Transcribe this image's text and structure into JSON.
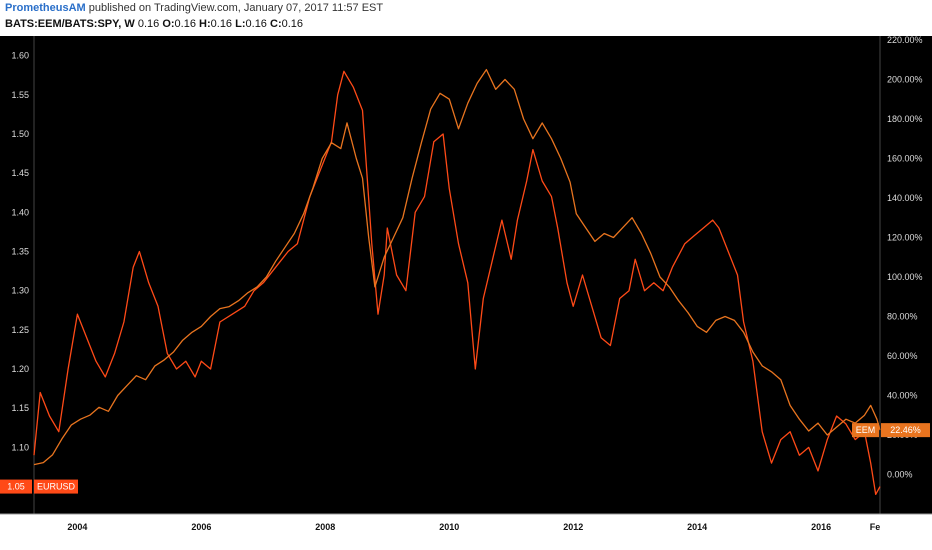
{
  "header": {
    "author": "PrometheusAM",
    "published_text": "published on TradingView.com, January 07, 2017 11:57 EST",
    "symbol": "BATS:EEM/BATS:SPY, W",
    "last_value": "0.16",
    "o_label": "O:",
    "o_value": "0.16",
    "h_label": "H:",
    "h_value": "0.16",
    "l_label": "L:",
    "l_value": "0.16",
    "c_label": "C:",
    "c_value": "0.16"
  },
  "colors": {
    "background": "#000000",
    "eurusd": "#ff4a17",
    "eem": "#e8741f",
    "axis_bg": "#000000",
    "x_axis_bg": "#ffffff"
  },
  "chart_data": {
    "type": "line",
    "title": "",
    "xlabel": "",
    "ylabel": "",
    "x_range": [
      2003.3,
      2016.95
    ],
    "x_ticks": [
      "2004",
      "2006",
      "2008",
      "2010",
      "2012",
      "2014",
      "2016",
      "Fe"
    ],
    "y_left": {
      "range": [
        1.015,
        1.625
      ],
      "ticks": [
        "1.60",
        "1.55",
        "1.50",
        "1.45",
        "1.40",
        "1.35",
        "1.30",
        "1.25",
        "1.20",
        "1.15",
        "1.10"
      ]
    },
    "y_right": {
      "range": [
        -20,
        222
      ],
      "ticks": [
        "220.00%",
        "200.00%",
        "180.00%",
        "160.00%",
        "140.00%",
        "120.00%",
        "100.00%",
        "80.00%",
        "60.00%",
        "40.00%",
        "20.00%",
        "0.00%"
      ]
    },
    "series": [
      {
        "name": "EURUSD",
        "axis": "left",
        "last_value_label": "1.05",
        "points": [
          [
            2003.3,
            1.09
          ],
          [
            2003.4,
            1.17
          ],
          [
            2003.55,
            1.14
          ],
          [
            2003.7,
            1.12
          ],
          [
            2003.85,
            1.2
          ],
          [
            2004.0,
            1.27
          ],
          [
            2004.15,
            1.24
          ],
          [
            2004.3,
            1.21
          ],
          [
            2004.45,
            1.19
          ],
          [
            2004.6,
            1.22
          ],
          [
            2004.75,
            1.26
          ],
          [
            2004.9,
            1.33
          ],
          [
            2005.0,
            1.35
          ],
          [
            2005.15,
            1.31
          ],
          [
            2005.3,
            1.28
          ],
          [
            2005.45,
            1.22
          ],
          [
            2005.6,
            1.2
          ],
          [
            2005.75,
            1.21
          ],
          [
            2005.9,
            1.19
          ],
          [
            2006.0,
            1.21
          ],
          [
            2006.15,
            1.2
          ],
          [
            2006.3,
            1.26
          ],
          [
            2006.5,
            1.27
          ],
          [
            2006.7,
            1.28
          ],
          [
            2006.85,
            1.3
          ],
          [
            2007.0,
            1.31
          ],
          [
            2007.2,
            1.33
          ],
          [
            2007.4,
            1.35
          ],
          [
            2007.55,
            1.36
          ],
          [
            2007.75,
            1.42
          ],
          [
            2007.95,
            1.46
          ],
          [
            2008.1,
            1.49
          ],
          [
            2008.2,
            1.55
          ],
          [
            2008.3,
            1.58
          ],
          [
            2008.45,
            1.56
          ],
          [
            2008.6,
            1.53
          ],
          [
            2008.75,
            1.36
          ],
          [
            2008.85,
            1.27
          ],
          [
            2008.95,
            1.32
          ],
          [
            2009.0,
            1.38
          ],
          [
            2009.15,
            1.32
          ],
          [
            2009.3,
            1.3
          ],
          [
            2009.45,
            1.4
          ],
          [
            2009.6,
            1.42
          ],
          [
            2009.75,
            1.49
          ],
          [
            2009.9,
            1.5
          ],
          [
            2010.0,
            1.43
          ],
          [
            2010.15,
            1.36
          ],
          [
            2010.3,
            1.31
          ],
          [
            2010.42,
            1.2
          ],
          [
            2010.55,
            1.29
          ],
          [
            2010.7,
            1.34
          ],
          [
            2010.85,
            1.39
          ],
          [
            2011.0,
            1.34
          ],
          [
            2011.1,
            1.39
          ],
          [
            2011.25,
            1.44
          ],
          [
            2011.35,
            1.48
          ],
          [
            2011.5,
            1.44
          ],
          [
            2011.65,
            1.42
          ],
          [
            2011.75,
            1.38
          ],
          [
            2011.9,
            1.31
          ],
          [
            2012.0,
            1.28
          ],
          [
            2012.15,
            1.32
          ],
          [
            2012.3,
            1.28
          ],
          [
            2012.45,
            1.24
          ],
          [
            2012.6,
            1.23
          ],
          [
            2012.75,
            1.29
          ],
          [
            2012.9,
            1.3
          ],
          [
            2013.0,
            1.34
          ],
          [
            2013.15,
            1.3
          ],
          [
            2013.3,
            1.31
          ],
          [
            2013.45,
            1.3
          ],
          [
            2013.6,
            1.33
          ],
          [
            2013.8,
            1.36
          ],
          [
            2013.95,
            1.37
          ],
          [
            2014.1,
            1.38
          ],
          [
            2014.25,
            1.39
          ],
          [
            2014.35,
            1.38
          ],
          [
            2014.5,
            1.35
          ],
          [
            2014.65,
            1.32
          ],
          [
            2014.75,
            1.26
          ],
          [
            2014.9,
            1.21
          ],
          [
            2015.05,
            1.12
          ],
          [
            2015.2,
            1.08
          ],
          [
            2015.35,
            1.11
          ],
          [
            2015.5,
            1.12
          ],
          [
            2015.65,
            1.09
          ],
          [
            2015.8,
            1.1
          ],
          [
            2015.95,
            1.07
          ],
          [
            2016.1,
            1.11
          ],
          [
            2016.25,
            1.14
          ],
          [
            2016.4,
            1.13
          ],
          [
            2016.55,
            1.11
          ],
          [
            2016.7,
            1.12
          ],
          [
            2016.8,
            1.08
          ],
          [
            2016.88,
            1.04
          ],
          [
            2016.95,
            1.05
          ]
        ]
      },
      {
        "name": "EEM",
        "axis": "right",
        "last_value_label": "22.46%",
        "points": [
          [
            2003.3,
            5
          ],
          [
            2003.45,
            6
          ],
          [
            2003.6,
            10
          ],
          [
            2003.75,
            18
          ],
          [
            2003.9,
            25
          ],
          [
            2004.05,
            28
          ],
          [
            2004.2,
            30
          ],
          [
            2004.35,
            34
          ],
          [
            2004.5,
            32
          ],
          [
            2004.65,
            40
          ],
          [
            2004.8,
            45
          ],
          [
            2004.95,
            50
          ],
          [
            2005.1,
            48
          ],
          [
            2005.25,
            55
          ],
          [
            2005.4,
            58
          ],
          [
            2005.55,
            62
          ],
          [
            2005.7,
            68
          ],
          [
            2005.85,
            72
          ],
          [
            2006.0,
            75
          ],
          [
            2006.15,
            80
          ],
          [
            2006.3,
            84
          ],
          [
            2006.45,
            85
          ],
          [
            2006.6,
            88
          ],
          [
            2006.75,
            92
          ],
          [
            2006.9,
            95
          ],
          [
            2007.05,
            100
          ],
          [
            2007.2,
            108
          ],
          [
            2007.35,
            115
          ],
          [
            2007.5,
            122
          ],
          [
            2007.65,
            132
          ],
          [
            2007.8,
            145
          ],
          [
            2007.95,
            160
          ],
          [
            2008.1,
            168
          ],
          [
            2008.25,
            165
          ],
          [
            2008.35,
            178
          ],
          [
            2008.5,
            160
          ],
          [
            2008.6,
            150
          ],
          [
            2008.7,
            120
          ],
          [
            2008.8,
            95
          ],
          [
            2008.95,
            110
          ],
          [
            2009.1,
            120
          ],
          [
            2009.25,
            130
          ],
          [
            2009.4,
            150
          ],
          [
            2009.55,
            168
          ],
          [
            2009.7,
            185
          ],
          [
            2009.85,
            193
          ],
          [
            2010.0,
            190
          ],
          [
            2010.15,
            175
          ],
          [
            2010.3,
            188
          ],
          [
            2010.45,
            198
          ],
          [
            2010.6,
            205
          ],
          [
            2010.75,
            195
          ],
          [
            2010.9,
            200
          ],
          [
            2011.05,
            195
          ],
          [
            2011.2,
            180
          ],
          [
            2011.35,
            170
          ],
          [
            2011.5,
            178
          ],
          [
            2011.65,
            170
          ],
          [
            2011.8,
            160
          ],
          [
            2011.95,
            148
          ],
          [
            2012.05,
            132
          ],
          [
            2012.2,
            125
          ],
          [
            2012.35,
            118
          ],
          [
            2012.5,
            122
          ],
          [
            2012.65,
            120
          ],
          [
            2012.8,
            125
          ],
          [
            2012.95,
            130
          ],
          [
            2013.1,
            122
          ],
          [
            2013.25,
            112
          ],
          [
            2013.4,
            100
          ],
          [
            2013.55,
            95
          ],
          [
            2013.7,
            88
          ],
          [
            2013.85,
            82
          ],
          [
            2014.0,
            75
          ],
          [
            2014.15,
            72
          ],
          [
            2014.3,
            78
          ],
          [
            2014.45,
            80
          ],
          [
            2014.6,
            78
          ],
          [
            2014.75,
            72
          ],
          [
            2014.9,
            62
          ],
          [
            2015.05,
            55
          ],
          [
            2015.2,
            52
          ],
          [
            2015.35,
            48
          ],
          [
            2015.5,
            35
          ],
          [
            2015.65,
            28
          ],
          [
            2015.8,
            22
          ],
          [
            2015.95,
            26
          ],
          [
            2016.1,
            20
          ],
          [
            2016.25,
            24
          ],
          [
            2016.4,
            28
          ],
          [
            2016.55,
            26
          ],
          [
            2016.7,
            30
          ],
          [
            2016.8,
            35
          ],
          [
            2016.9,
            28
          ],
          [
            2016.95,
            22.46
          ]
        ]
      }
    ]
  }
}
